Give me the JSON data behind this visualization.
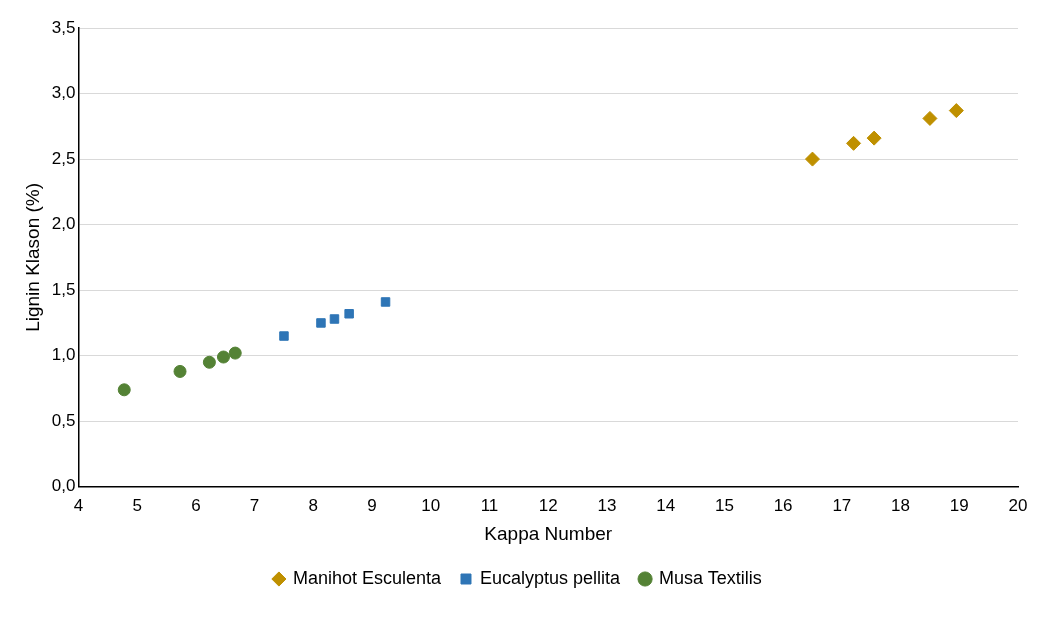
{
  "chart_data": {
    "type": "scatter",
    "xlabel": "Kappa Number",
    "ylabel": "Lignin Klason (%)",
    "xlim": [
      4,
      20
    ],
    "xticks": [
      4,
      5,
      6,
      7,
      8,
      9,
      10,
      11,
      12,
      13,
      14,
      15,
      16,
      17,
      18,
      19,
      20
    ],
    "ylim": [
      0,
      3.5
    ],
    "yticks": [
      {
        "value": 0,
        "label": "0,0"
      },
      {
        "value": 0.5,
        "label": "0,5"
      },
      {
        "value": 1,
        "label": "1,0"
      },
      {
        "value": 1.5,
        "label": "1,5"
      },
      {
        "value": 2,
        "label": "2,0"
      },
      {
        "value": 2.5,
        "label": "2,5"
      },
      {
        "value": 3,
        "label": "3,0"
      },
      {
        "value": 3.5,
        "label": "3,5"
      }
    ],
    "grid": "y",
    "legend": "bottom",
    "series": [
      {
        "name": "Manihot Esculenta",
        "color": "#bf9000",
        "marker": "diamond",
        "x": [
          16.5,
          17.2,
          17.55,
          18.5,
          18.95
        ],
        "values": [
          2.5,
          2.62,
          2.66,
          2.81,
          2.87
        ]
      },
      {
        "name": "Eucalyptus pellita",
        "color": "#2e75b6",
        "marker": "square",
        "x": [
          7.5,
          8.13,
          8.36,
          8.61,
          9.23
        ],
        "values": [
          1.15,
          1.25,
          1.28,
          1.32,
          1.41
        ]
      },
      {
        "name": "Musa Textilis",
        "color": "#548235",
        "marker": "circle",
        "x": [
          4.78,
          5.73,
          6.23,
          6.47,
          6.67
        ],
        "values": [
          0.74,
          0.88,
          0.95,
          0.99,
          1.02
        ]
      }
    ]
  }
}
